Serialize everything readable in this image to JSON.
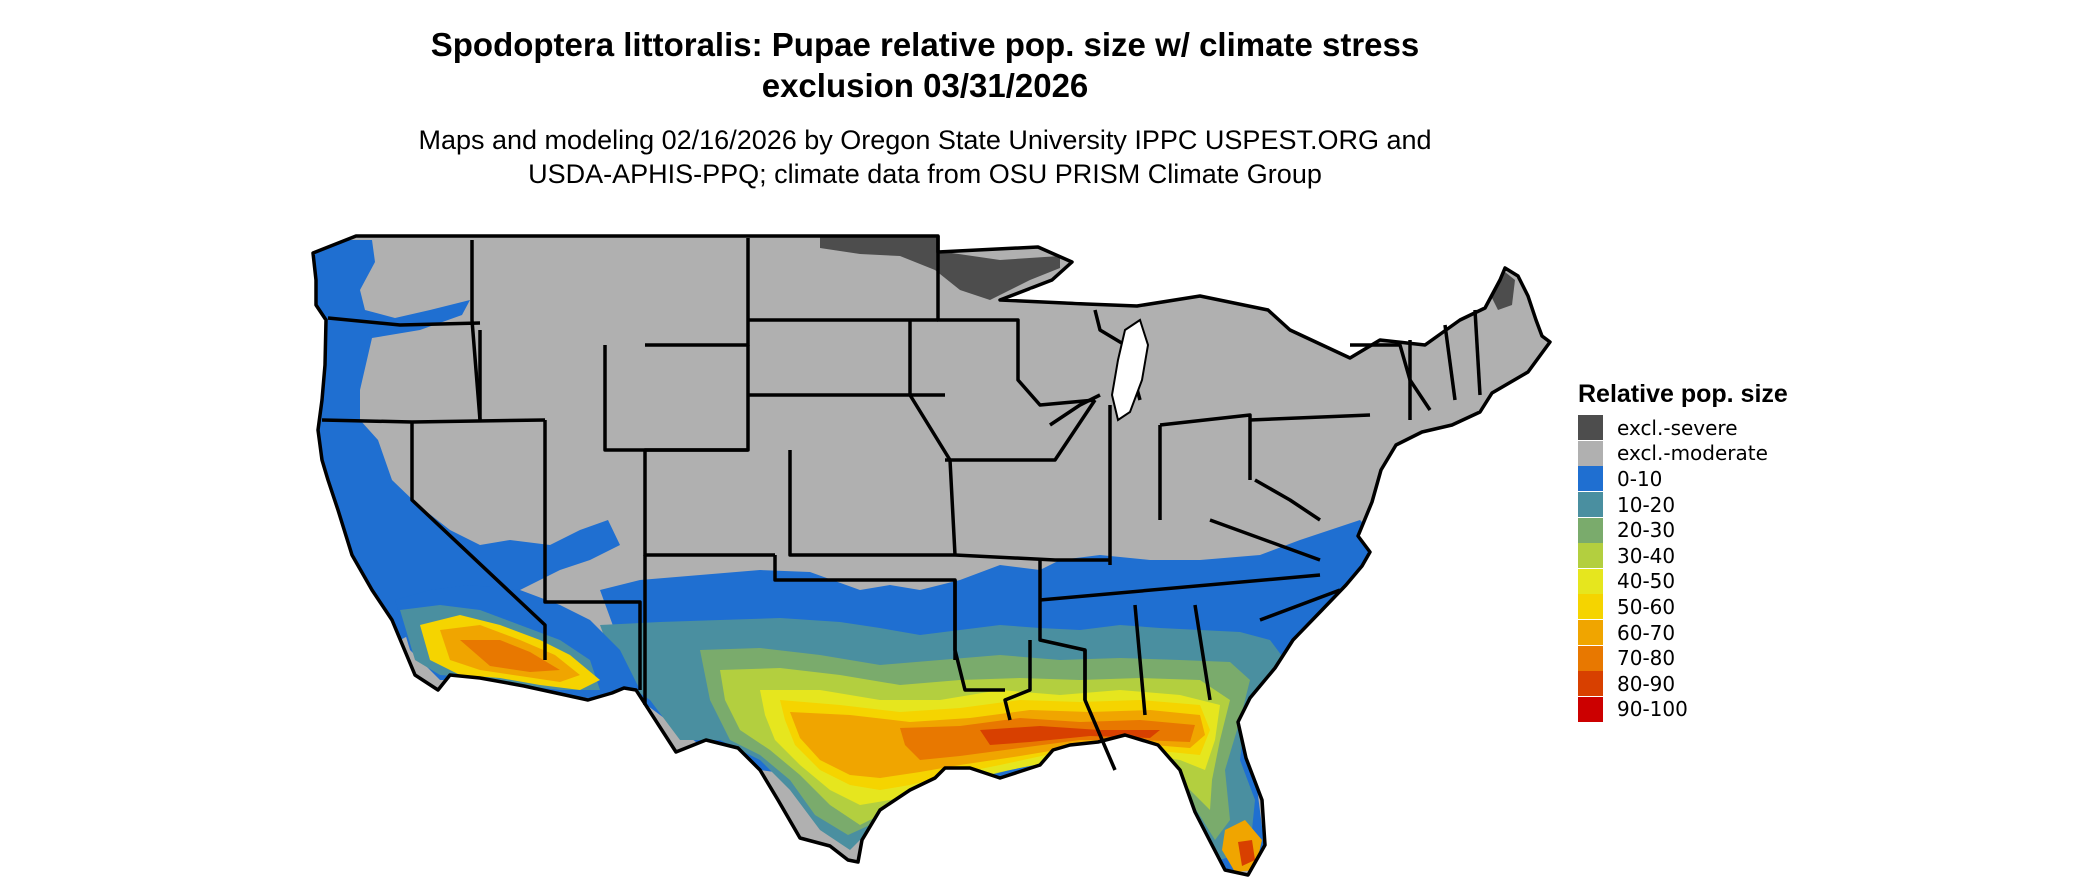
{
  "title_line1": "Spodoptera littoralis: Pupae relative pop. size w/ climate stress",
  "title_line2": "exclusion 03/31/2026",
  "subtitle_line1": "Maps and modeling 02/16/2026 by Oregon State University IPPC USPEST.ORG and",
  "subtitle_line2": "USDA-APHIS-PPQ; climate data from OSU PRISM Climate Group",
  "legend": {
    "title": "Relative pop. size",
    "items": [
      {
        "label": "excl.-severe",
        "color": "#4d4d4d"
      },
      {
        "label": "excl.-moderate",
        "color": "#b0b0b0"
      },
      {
        "label": "0-10",
        "color": "#1f6fd1"
      },
      {
        "label": "10-20",
        "color": "#4a8fa0"
      },
      {
        "label": "20-30",
        "color": "#7aab6c"
      },
      {
        "label": "30-40",
        "color": "#b3cf3f"
      },
      {
        "label": "40-50",
        "color": "#e6e61e"
      },
      {
        "label": "50-60",
        "color": "#f5d400"
      },
      {
        "label": "60-70",
        "color": "#f0a500"
      },
      {
        "label": "70-80",
        "color": "#e87800"
      },
      {
        "label": "80-90",
        "color": "#d84000"
      },
      {
        "label": "90-100",
        "color": "#cc0000"
      }
    ]
  }
}
